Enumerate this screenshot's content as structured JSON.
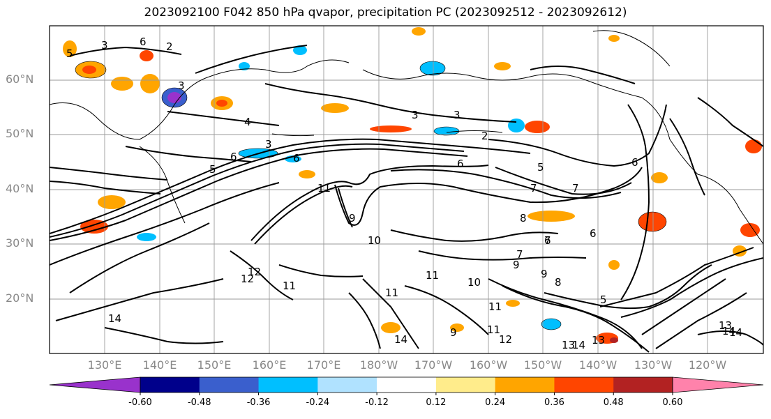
{
  "title": "2023092100 F042 850 hPa qvapor, precipitation PC (2023092512 - 2023092612)",
  "lat_labels": [
    "60°N",
    "50°N",
    "40°N",
    "30°N",
    "20°N"
  ],
  "lon_labels": [
    "130°E",
    "140°E",
    "150°E",
    "160°E",
    "170°E",
    "180°W",
    "170°W",
    "160°W",
    "150°W",
    "140°W",
    "130°W",
    "120°W"
  ],
  "colorbar": {
    "colors": [
      "#9932cc",
      "#00008b",
      "#3a5fcd",
      "#00bfff",
      "#b0e2ff",
      "#ffffff",
      "#ffec8b",
      "#ffa500",
      "#ff4500",
      "#b22222",
      "#ff82ab"
    ],
    "tick_labels": [
      "-0.60",
      "-0.48",
      "-0.36",
      "-0.24",
      "-0.12",
      "0.12",
      "0.24",
      "0.36",
      "0.48",
      "0.60"
    ]
  },
  "contour_labels": [
    "5",
    "3",
    "6",
    "3",
    "2",
    "3",
    "6",
    "5",
    "2",
    "3",
    "6",
    "7",
    "7",
    "6",
    "8",
    "9",
    "7",
    "11",
    "9",
    "10",
    "8",
    "7",
    "6",
    "5",
    "11",
    "12",
    "11",
    "14",
    "11",
    "10",
    "11",
    "9",
    "11",
    "12",
    "14",
    "13",
    "14",
    "13",
    "14",
    "5",
    "3",
    "4",
    "6",
    "6",
    "9",
    "13",
    "14",
    "12"
  ]
}
